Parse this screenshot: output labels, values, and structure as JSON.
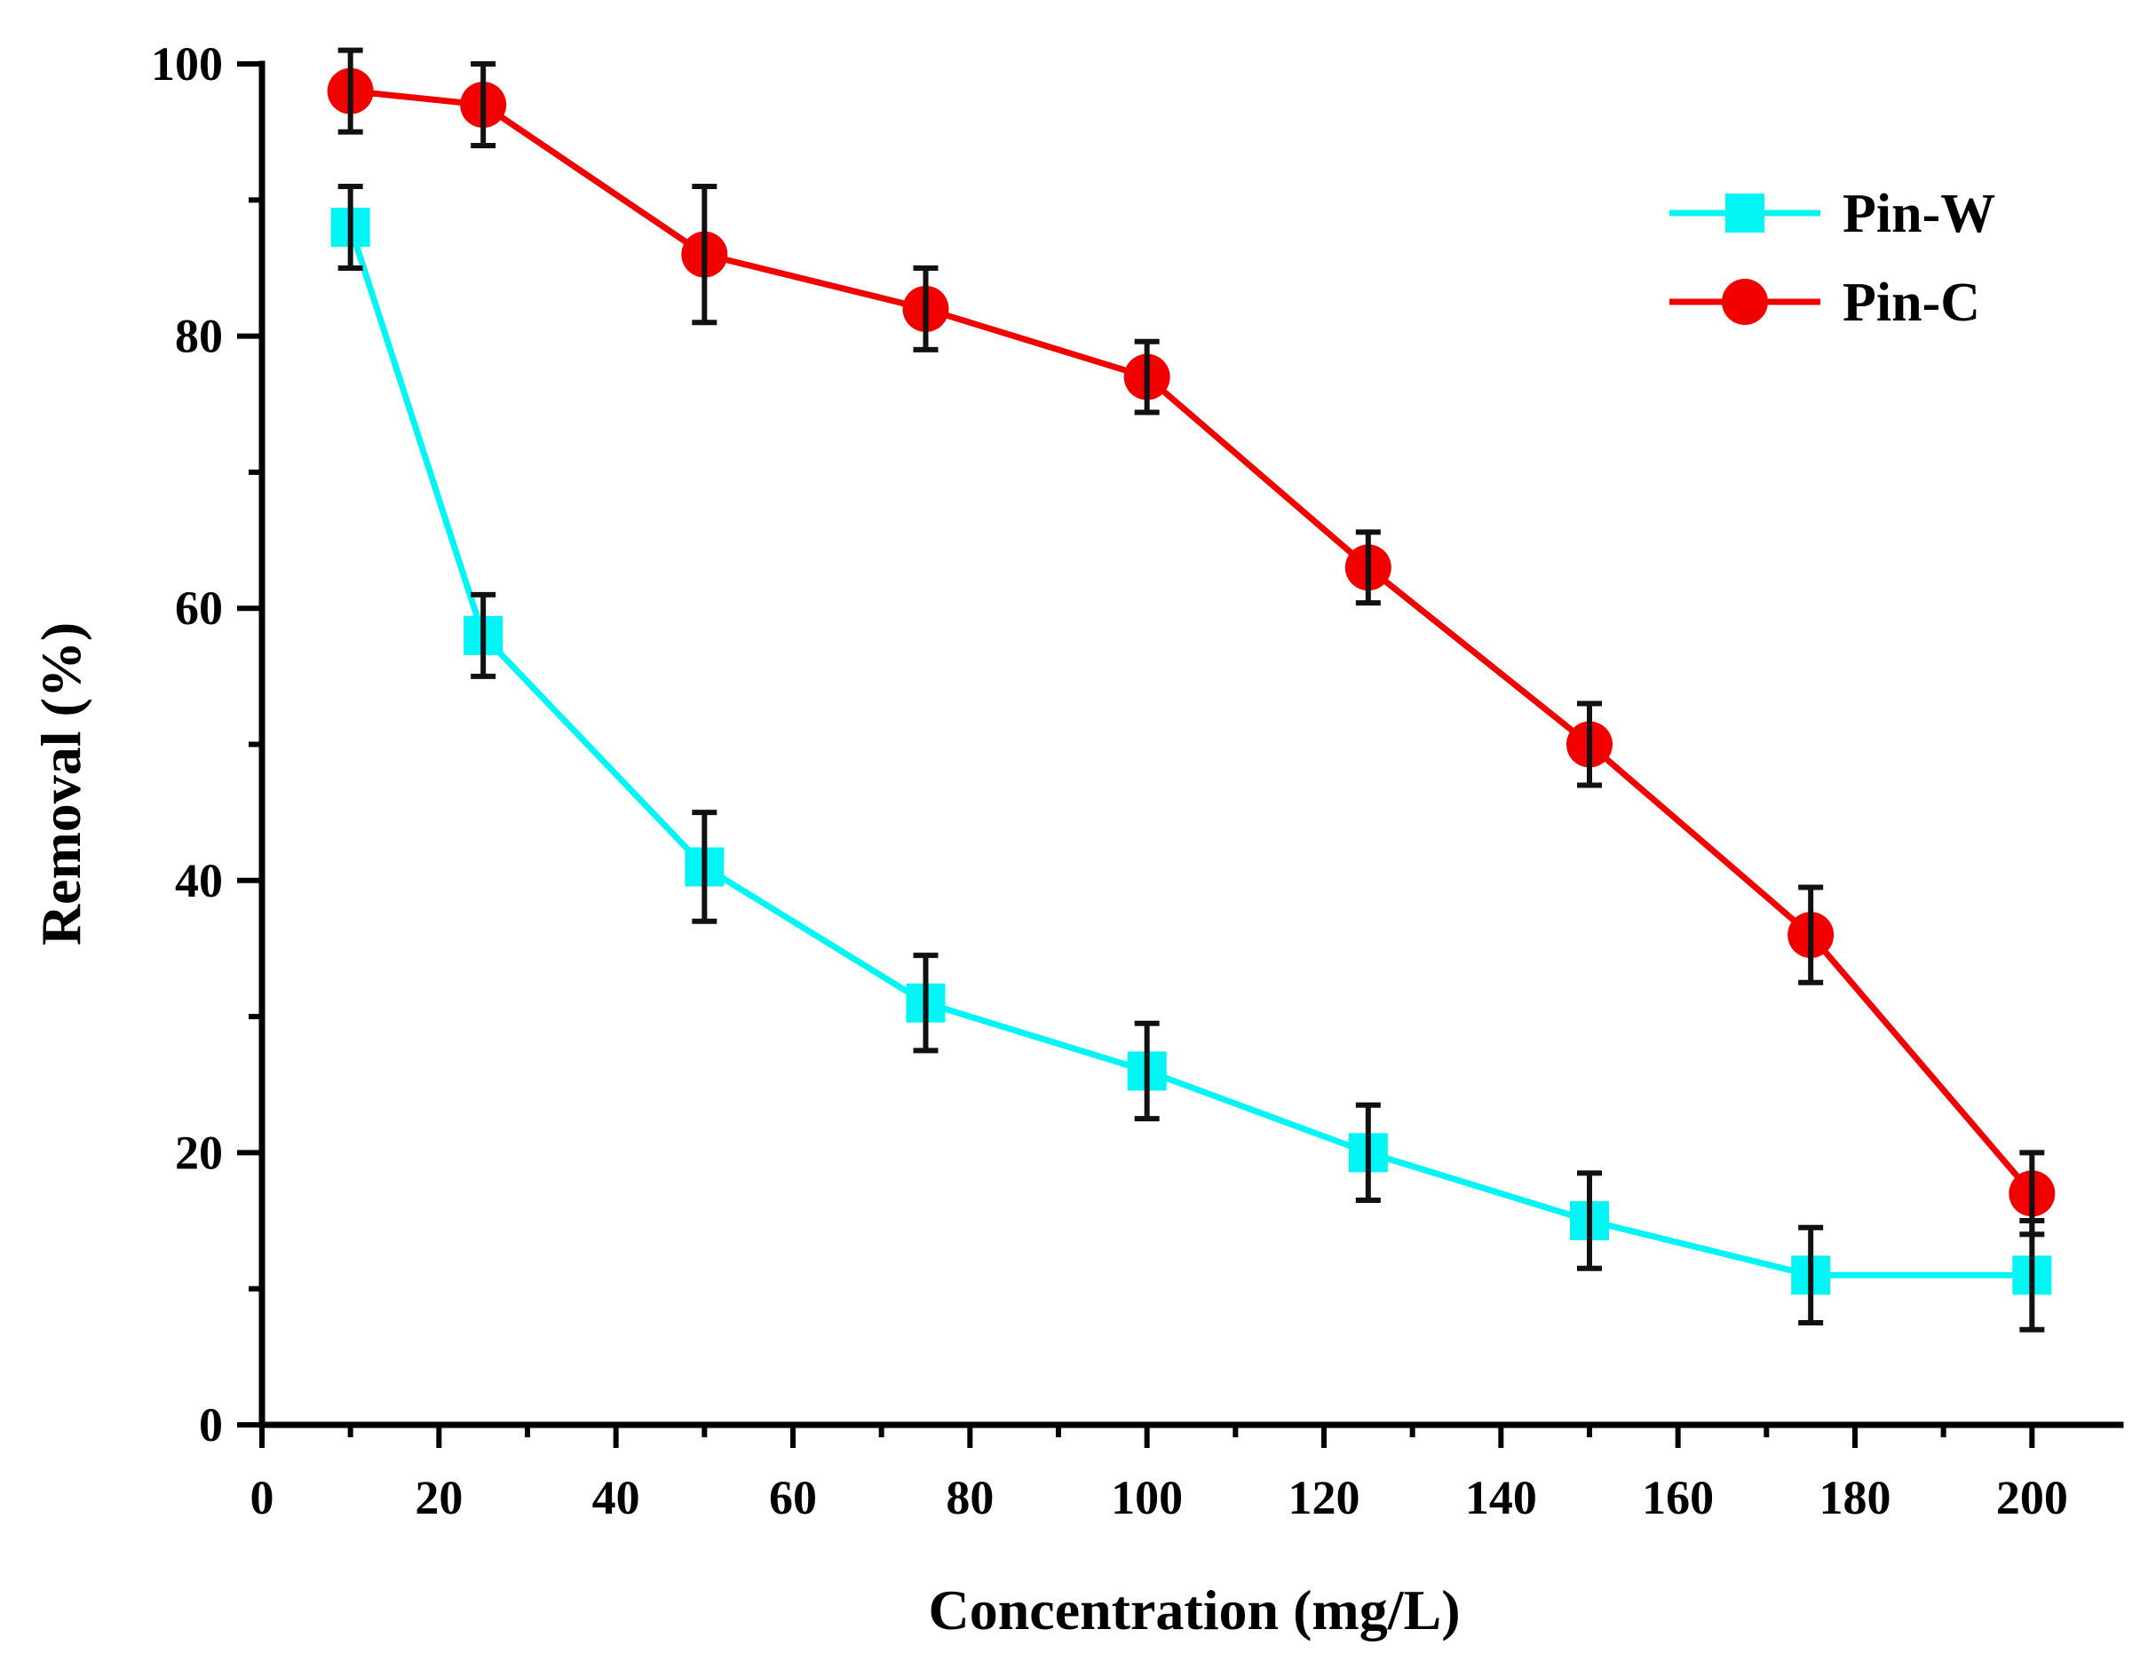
{
  "chart_data": {
    "type": "line",
    "title": "",
    "xlabel": "Concentration (mg/L)",
    "ylabel": "Removal (%)",
    "xlim": [
      0,
      210
    ],
    "ylim": [
      0,
      100
    ],
    "x_ticks": [
      0,
      20,
      40,
      60,
      80,
      100,
      120,
      140,
      160,
      180,
      200
    ],
    "y_ticks": [
      0,
      20,
      40,
      60,
      80,
      100
    ],
    "x_tick_labels": [
      "0",
      "20",
      "40",
      "60",
      "80",
      "100",
      "120",
      "140",
      "160",
      "180",
      "200"
    ],
    "y_tick_labels": [
      "0",
      "20",
      "40",
      "60",
      "80",
      "100"
    ],
    "grid": false,
    "legend_position": "top-right",
    "x": [
      10,
      25,
      50,
      75,
      100,
      125,
      150,
      175,
      200
    ],
    "series": [
      {
        "name": "Pin-W",
        "color": "#00f5f5",
        "marker": "square",
        "values": [
          88,
          58,
          41,
          31,
          26,
          20,
          15,
          11,
          11
        ],
        "errors": [
          3,
          3,
          4,
          3.5,
          3.5,
          3.5,
          3.5,
          3.5,
          4
        ]
      },
      {
        "name": "Pin-C",
        "color": "#f20000",
        "marker": "circle",
        "values": [
          98,
          97,
          86,
          82,
          77,
          63,
          50,
          36,
          17
        ],
        "errors": [
          3,
          3,
          5,
          3,
          2.6,
          2.6,
          3,
          3.5,
          3
        ]
      }
    ]
  }
}
